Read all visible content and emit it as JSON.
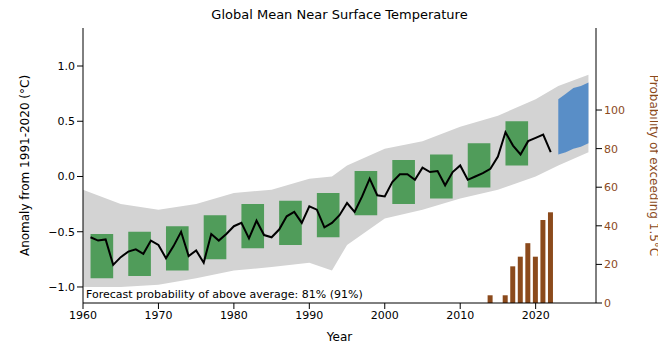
{
  "chart_data": {
    "type": "line",
    "title": "Global Mean Near Surface Temperature",
    "x_label": "Year",
    "y_label": "Anomaly from 1991-2020 (°C)",
    "y2_label": "Probability of exceeding 1.5°C",
    "annotations": [
      "Forecast probability of above average: 81% (91%)"
    ],
    "xlim": [
      1960,
      2028
    ],
    "xticks": [
      1960,
      1970,
      1980,
      1990,
      2000,
      2010,
      2020
    ],
    "ylim": [
      -1.145,
      1.344
    ],
    "yticks": [
      {
        "value": -1,
        "label": "−1.0"
      },
      {
        "value": -0.5,
        "label": "−0.5"
      },
      {
        "value": 0,
        "label": "0.0"
      },
      {
        "value": 0.5,
        "label": "0.5"
      },
      {
        "value": 1,
        "label": "1.0"
      }
    ],
    "y2lim": [
      0,
      142.5
    ],
    "y2ticks": [
      0,
      20,
      40,
      60,
      80,
      100
    ],
    "grid": false,
    "series": [
      {
        "type": "range",
        "color": "#d3d3d3",
        "x": [
          1960,
          1965,
          1970,
          1975,
          1980,
          1985,
          1990,
          1993,
          1995,
          2000,
          2005,
          2010,
          2015,
          2020,
          2023,
          2027
        ],
        "low": [
          -1.0,
          -1.0,
          -0.98,
          -0.92,
          -0.85,
          -0.82,
          -0.78,
          -0.85,
          -0.62,
          -0.38,
          -0.3,
          -0.2,
          -0.12,
          0.0,
          0.1,
          0.22
        ],
        "high": [
          -0.12,
          -0.25,
          -0.3,
          -0.25,
          -0.15,
          -0.12,
          -0.02,
          0.0,
          0.1,
          0.25,
          0.32,
          0.45,
          0.55,
          0.7,
          0.82,
          0.92
        ]
      },
      {
        "type": "range",
        "color": "#2f8f3c",
        "x": [
          1961,
          1962,
          1963,
          1964,
          1966,
          1967,
          1968,
          1969,
          1971,
          1972,
          1973,
          1974,
          1976,
          1977,
          1978,
          1979,
          1981,
          1982,
          1983,
          1984,
          1986,
          1987,
          1988,
          1989,
          1991,
          1992,
          1993,
          1994,
          1996,
          1997,
          1998,
          1999,
          2001,
          2002,
          2003,
          2004,
          2006,
          2007,
          2008,
          2009,
          2011,
          2012,
          2013,
          2014,
          2016,
          2017,
          2018,
          2019
        ],
        "low": [
          -0.92,
          -0.92,
          -0.92,
          -0.92,
          -0.9,
          -0.9,
          -0.9,
          -0.9,
          -0.85,
          -0.85,
          -0.85,
          -0.85,
          -0.75,
          -0.75,
          -0.75,
          -0.75,
          -0.65,
          -0.65,
          -0.65,
          -0.65,
          -0.62,
          -0.62,
          -0.62,
          -0.62,
          -0.55,
          -0.55,
          -0.55,
          -0.55,
          -0.35,
          -0.35,
          -0.35,
          -0.35,
          -0.25,
          -0.25,
          -0.25,
          -0.25,
          -0.2,
          -0.2,
          -0.2,
          -0.2,
          -0.1,
          -0.1,
          -0.1,
          -0.1,
          0.1,
          0.1,
          0.1,
          0.1
        ],
        "high": [
          -0.52,
          -0.52,
          -0.52,
          -0.52,
          -0.5,
          -0.5,
          -0.5,
          -0.5,
          -0.45,
          -0.45,
          -0.45,
          -0.45,
          -0.35,
          -0.35,
          -0.35,
          -0.35,
          -0.25,
          -0.25,
          -0.25,
          -0.25,
          -0.22,
          -0.22,
          -0.22,
          -0.22,
          -0.15,
          -0.15,
          -0.15,
          -0.15,
          0.05,
          0.05,
          0.05,
          0.05,
          0.15,
          0.15,
          0.15,
          0.15,
          0.2,
          0.2,
          0.2,
          0.2,
          0.3,
          0.3,
          0.3,
          0.3,
          0.5,
          0.5,
          0.5,
          0.5
        ]
      },
      {
        "type": "range",
        "color": "#3b7dc4",
        "x": [
          2023,
          2024,
          2025,
          2026,
          2027
        ],
        "low": [
          0.2,
          0.22,
          0.25,
          0.27,
          0.3
        ],
        "high": [
          0.7,
          0.75,
          0.8,
          0.82,
          0.85
        ]
      },
      {
        "type": "line",
        "color": "#000000",
        "x": [
          1961,
          1962,
          1963,
          1964,
          1965,
          1966,
          1967,
          1968,
          1969,
          1970,
          1971,
          1972,
          1973,
          1974,
          1975,
          1976,
          1977,
          1978,
          1979,
          1980,
          1981,
          1982,
          1983,
          1984,
          1985,
          1986,
          1987,
          1988,
          1989,
          1990,
          1991,
          1992,
          1993,
          1994,
          1995,
          1996,
          1997,
          1998,
          1999,
          2000,
          2001,
          2002,
          2003,
          2004,
          2005,
          2006,
          2007,
          2008,
          2009,
          2010,
          2011,
          2012,
          2013,
          2014,
          2015,
          2016,
          2017,
          2018,
          2019,
          2020,
          2021,
          2022
        ],
        "values": [
          -0.55,
          -0.58,
          -0.57,
          -0.8,
          -0.73,
          -0.68,
          -0.66,
          -0.7,
          -0.58,
          -0.62,
          -0.74,
          -0.63,
          -0.5,
          -0.72,
          -0.67,
          -0.78,
          -0.52,
          -0.58,
          -0.52,
          -0.45,
          -0.42,
          -0.56,
          -0.4,
          -0.53,
          -0.55,
          -0.48,
          -0.36,
          -0.32,
          -0.42,
          -0.27,
          -0.3,
          -0.46,
          -0.42,
          -0.35,
          -0.24,
          -0.32,
          -0.18,
          -0.02,
          -0.17,
          -0.18,
          -0.05,
          0.02,
          0.02,
          -0.03,
          0.08,
          0.04,
          0.05,
          -0.08,
          0.04,
          0.1,
          -0.03,
          0.0,
          0.03,
          0.07,
          0.18,
          0.4,
          0.28,
          0.2,
          0.32,
          0.35,
          0.38,
          0.22
        ]
      },
      {
        "type": "bar",
        "axis": "y2",
        "color": "#8b4a1c",
        "x": [
          2014,
          2016,
          2017,
          2018,
          2019,
          2020,
          2021,
          2022
        ],
        "values": [
          4,
          4,
          19,
          24,
          31,
          24,
          43,
          47
        ]
      }
    ]
  }
}
